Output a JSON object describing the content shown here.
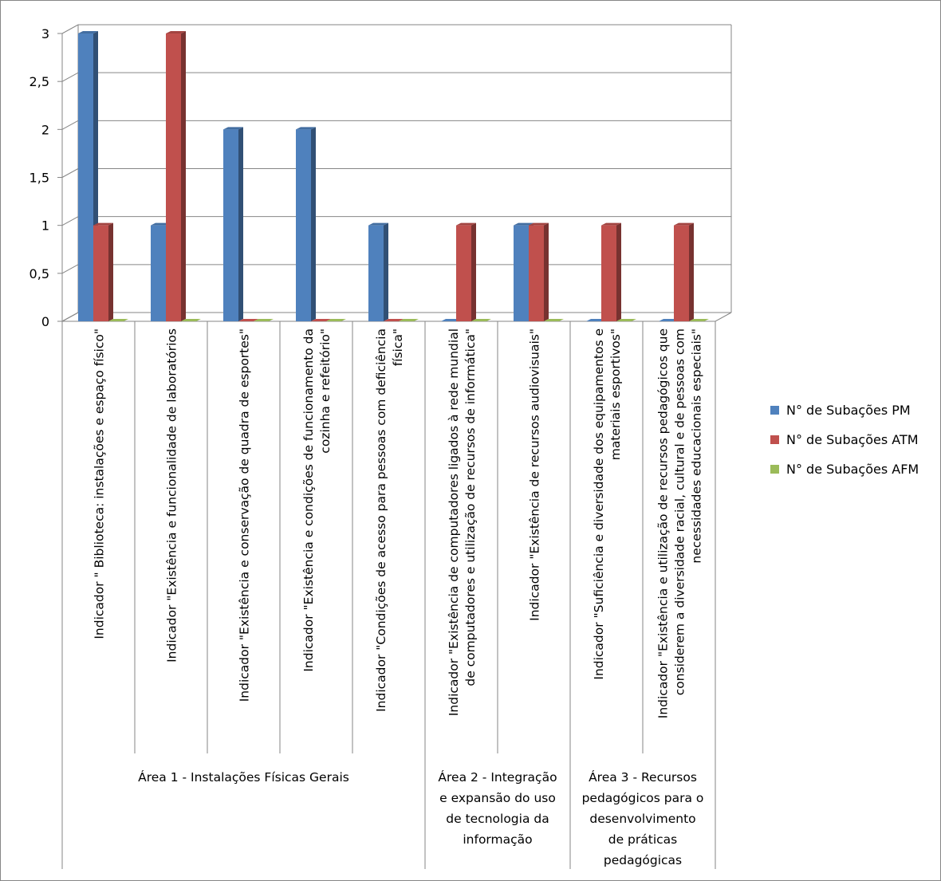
{
  "chart_data": {
    "type": "bar",
    "title": "",
    "xlabel": "",
    "ylabel": "",
    "ylim": [
      0,
      3
    ],
    "yticks": [
      "0",
      "0,5",
      "1",
      "1,5",
      "2",
      "2,5",
      "3"
    ],
    "grid": true,
    "legend_position": "right",
    "categories": [
      [
        "Indicador \" Biblioteca: instalações e espaço físico\""
      ],
      [
        "Indicador \"Existência e funcionalidade de laboratórios"
      ],
      [
        "Indicador \"Existência e conservação de quadra de esportes\""
      ],
      [
        "Indicador \"Existência e condições de funcionamento da",
        "cozinha e refeitório\""
      ],
      [
        "Indicador \"Condições de acesso para pessoas com deficiência",
        "física\""
      ],
      [
        "Indicador \"Existência de computadores ligados à rede mundial",
        "de computadores e utilização de recursos de informática\""
      ],
      [
        "Indicador \"Existência de recursos audiovisuais\""
      ],
      [
        "Indicador \"Suficiência e diversidade dos equipamentos e",
        "materiais esportivos\""
      ],
      [
        "Indicador \"Existência e utilização de recursos pedagógicos que",
        "considerem a diversidade racial, cultural e de pessoas com",
        "necessidades educacionais especiais\""
      ]
    ],
    "groups": [
      {
        "label": [
          "Área 1 - Instalações Físicas Gerais"
        ],
        "span": 5
      },
      {
        "label": [
          "Área 2 - Integração",
          "e expansão do uso",
          "de tecnologia da",
          "informação"
        ],
        "span": 2
      },
      {
        "label": [
          "Área 3 - Recursos",
          "pedagógicos para o",
          "desenvolvimento",
          "de práticas",
          "pedagógicas"
        ],
        "span": 2
      }
    ],
    "series": [
      {
        "name": "N° de Subações PM",
        "color": "#4F81BD",
        "values": [
          3,
          1,
          2,
          2,
          1,
          0,
          1,
          0,
          0
        ]
      },
      {
        "name": "N° de Subações ATM",
        "color": "#C0504D",
        "values": [
          1,
          3,
          0,
          0,
          0,
          1,
          1,
          1,
          1
        ]
      },
      {
        "name": "N° de Subações AFM",
        "color": "#9BBB59",
        "values": [
          0,
          0,
          0,
          0,
          0,
          0,
          0,
          0,
          0
        ]
      }
    ]
  }
}
